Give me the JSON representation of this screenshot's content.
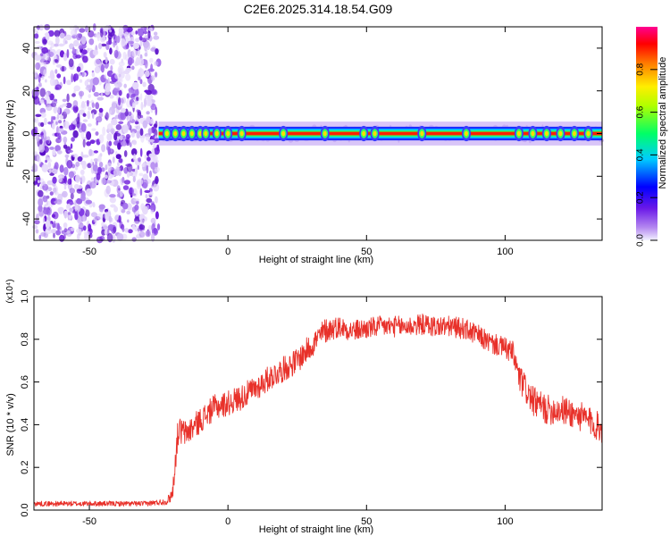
{
  "title": "C2E6.2025.314.18.54.G09",
  "colors": {
    "snr_line": "#e8312a",
    "axis": "#000000"
  },
  "chart_data": [
    {
      "type": "heatmap",
      "xlabel": "Height of straight line (km)",
      "ylabel": "Frequency (Hz)",
      "xlim": [
        -70,
        135
      ],
      "ylim": [
        -50,
        50
      ],
      "xticks": [
        -50,
        0,
        50,
        100
      ],
      "yticks": [
        -40,
        -20,
        0,
        20,
        40
      ],
      "colorbar": {
        "label": "Normalized spectral amplitude",
        "range": [
          0,
          1
        ],
        "ticks": [
          0.0,
          0.2,
          0.4,
          0.6,
          0.8
        ],
        "colormap": "rainbow (violet to magenta)"
      },
      "features": [
        {
          "region": "noise",
          "x_range": [
            -70,
            -25
          ],
          "frequency_range": [
            -50,
            50
          ],
          "amplitude_range": [
            0.05,
            0.25
          ]
        },
        {
          "region": "signal",
          "x_range": [
            -25,
            135
          ],
          "center_frequency": 0,
          "peak_amplitude": 1.0,
          "halo_frequency_width": 4
        }
      ]
    },
    {
      "type": "line",
      "xlabel": "Height of straight line (km)",
      "ylabel": "SNR (10 * v/v)",
      "y_multiplier": "(x10⁴)",
      "xlim": [
        -70,
        135
      ],
      "ylim": [
        0,
        1.0
      ],
      "xticks": [
        -50,
        0,
        50,
        100
      ],
      "yticks": [
        0.0,
        0.2,
        0.4,
        0.6,
        0.8,
        1.0
      ],
      "series": [
        {
          "x": [
            -70,
            -60,
            -50,
            -40,
            -30,
            -22,
            -20,
            -18,
            -15,
            -10,
            -5,
            0,
            5,
            10,
            15,
            20,
            25,
            30,
            35,
            40,
            45,
            50,
            55,
            60,
            65,
            70,
            75,
            80,
            85,
            90,
            95,
            100,
            103,
            105,
            110,
            115,
            120,
            125,
            130,
            135
          ],
          "values": [
            0.03,
            0.03,
            0.03,
            0.03,
            0.03,
            0.04,
            0.08,
            0.37,
            0.36,
            0.42,
            0.48,
            0.5,
            0.53,
            0.57,
            0.62,
            0.66,
            0.7,
            0.77,
            0.84,
            0.86,
            0.84,
            0.85,
            0.86,
            0.86,
            0.86,
            0.87,
            0.86,
            0.86,
            0.85,
            0.82,
            0.78,
            0.76,
            0.73,
            0.62,
            0.51,
            0.47,
            0.47,
            0.45,
            0.42,
            0.38
          ],
          "noise_amplitude": [
            0.012,
            0.012,
            0.012,
            0.012,
            0.012,
            0.015,
            0.04,
            0.07,
            0.06,
            0.06,
            0.06,
            0.06,
            0.06,
            0.06,
            0.06,
            0.06,
            0.06,
            0.06,
            0.06,
            0.05,
            0.05,
            0.05,
            0.05,
            0.05,
            0.05,
            0.05,
            0.05,
            0.05,
            0.05,
            0.05,
            0.05,
            0.05,
            0.06,
            0.07,
            0.07,
            0.07,
            0.07,
            0.07,
            0.07,
            0.07
          ]
        }
      ]
    }
  ]
}
